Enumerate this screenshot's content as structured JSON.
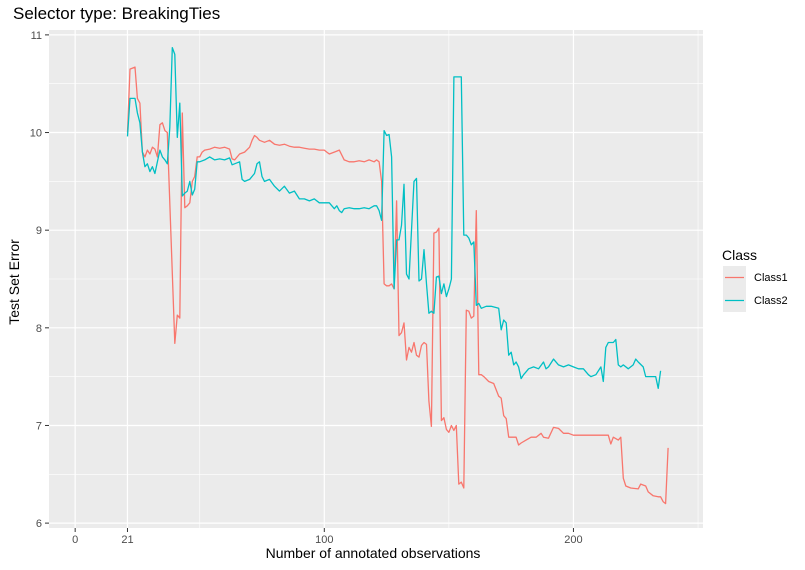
{
  "chart_data": {
    "type": "line",
    "title": "Selector type: BreakingTies",
    "xlabel": "Number of annotated observations",
    "ylabel": "Test Set Error",
    "xlim": [
      -10.5,
      252
    ],
    "ylim": [
      5.95,
      11.05
    ],
    "x_ticks": [
      0,
      21,
      100,
      200
    ],
    "y_ticks": [
      6,
      7,
      8,
      9,
      10,
      11
    ],
    "x_minor_ticks": [
      50,
      150,
      250
    ],
    "y_minor_ticks": [
      6.5,
      7.5,
      8.5,
      9.5,
      10.5
    ],
    "grid": true,
    "legend": {
      "title": "Class",
      "position": "right"
    },
    "series": [
      {
        "name": "Class1",
        "color": "#F8766D",
        "points": [
          [
            21,
            10.0
          ],
          [
            22,
            10.65
          ],
          [
            24,
            10.67
          ],
          [
            25,
            10.35
          ],
          [
            26,
            10.3
          ],
          [
            27,
            9.8
          ],
          [
            28,
            9.75
          ],
          [
            29,
            9.82
          ],
          [
            30,
            9.78
          ],
          [
            31,
            9.85
          ],
          [
            32,
            9.83
          ],
          [
            33,
            9.75
          ],
          [
            34,
            10.08
          ],
          [
            35,
            10.1
          ],
          [
            36,
            10.02
          ],
          [
            37,
            10.0
          ],
          [
            40,
            7.84
          ],
          [
            41,
            8.13
          ],
          [
            42,
            8.1
          ],
          [
            43,
            10.2
          ],
          [
            44,
            9.23
          ],
          [
            45,
            9.25
          ],
          [
            46,
            9.28
          ],
          [
            47,
            9.5
          ],
          [
            48,
            9.55
          ],
          [
            49,
            9.75
          ],
          [
            50,
            9.75
          ],
          [
            51,
            9.8
          ],
          [
            52,
            9.82
          ],
          [
            54,
            9.83
          ],
          [
            56,
            9.85
          ],
          [
            58,
            9.84
          ],
          [
            60,
            9.85
          ],
          [
            62,
            9.83
          ],
          [
            63,
            9.73
          ],
          [
            64,
            9.72
          ],
          [
            66,
            9.78
          ],
          [
            68,
            9.8
          ],
          [
            70,
            9.85
          ],
          [
            71,
            9.92
          ],
          [
            72,
            9.97
          ],
          [
            73,
            9.95
          ],
          [
            74,
            9.92
          ],
          [
            76,
            9.9
          ],
          [
            78,
            9.92
          ],
          [
            80,
            9.88
          ],
          [
            82,
            9.87
          ],
          [
            84,
            9.88
          ],
          [
            86,
            9.86
          ],
          [
            88,
            9.85
          ],
          [
            90,
            9.85
          ],
          [
            92,
            9.84
          ],
          [
            94,
            9.83
          ],
          [
            96,
            9.83
          ],
          [
            98,
            9.82
          ],
          [
            100,
            9.82
          ],
          [
            101,
            9.8
          ],
          [
            102,
            9.78
          ],
          [
            104,
            9.8
          ],
          [
            106,
            9.82
          ],
          [
            108,
            9.72
          ],
          [
            110,
            9.7
          ],
          [
            112,
            9.7
          ],
          [
            114,
            9.71
          ],
          [
            116,
            9.7
          ],
          [
            118,
            9.72
          ],
          [
            120,
            9.7
          ],
          [
            121,
            9.72
          ],
          [
            122,
            9.7
          ],
          [
            123,
            9.5
          ],
          [
            124,
            8.45
          ],
          [
            125,
            8.43
          ],
          [
            126,
            8.43
          ],
          [
            127,
            8.45
          ],
          [
            128,
            8.4
          ],
          [
            129,
            9.3
          ],
          [
            130,
            7.92
          ],
          [
            131,
            7.95
          ],
          [
            132,
            8.05
          ],
          [
            133,
            7.67
          ],
          [
            134,
            7.8
          ],
          [
            135,
            7.75
          ],
          [
            136,
            7.85
          ],
          [
            137,
            7.72
          ],
          [
            138,
            7.7
          ],
          [
            139,
            7.82
          ],
          [
            140,
            7.85
          ],
          [
            141,
            7.83
          ],
          [
            142,
            7.25
          ],
          [
            143,
            6.99
          ],
          [
            144,
            8.97
          ],
          [
            145,
            8.98
          ],
          [
            146,
            9.02
          ],
          [
            147,
            7.05
          ],
          [
            148,
            7.08
          ],
          [
            149,
            6.96
          ],
          [
            150,
            6.93
          ],
          [
            151,
            7.0
          ],
          [
            152,
            6.95
          ],
          [
            153,
            7.0
          ],
          [
            154,
            6.4
          ],
          [
            155,
            6.42
          ],
          [
            156,
            6.36
          ],
          [
            157,
            8.18
          ],
          [
            158,
            8.17
          ],
          [
            159,
            8.1
          ],
          [
            160,
            8.12
          ],
          [
            161,
            9.2
          ],
          [
            162,
            7.52
          ],
          [
            163,
            7.52
          ],
          [
            164,
            7.5
          ],
          [
            166,
            7.45
          ],
          [
            168,
            7.43
          ],
          [
            170,
            7.3
          ],
          [
            171,
            7.28
          ],
          [
            172,
            7.1
          ],
          [
            173,
            7.07
          ],
          [
            174,
            6.88
          ],
          [
            175,
            6.88
          ],
          [
            177,
            6.88
          ],
          [
            178,
            6.8
          ],
          [
            179,
            6.82
          ],
          [
            181,
            6.85
          ],
          [
            183,
            6.88
          ],
          [
            185,
            6.88
          ],
          [
            187,
            6.92
          ],
          [
            188,
            6.88
          ],
          [
            190,
            6.87
          ],
          [
            192,
            6.98
          ],
          [
            194,
            6.97
          ],
          [
            196,
            6.92
          ],
          [
            198,
            6.92
          ],
          [
            200,
            6.9
          ],
          [
            205,
            6.9
          ],
          [
            210,
            6.9
          ],
          [
            214,
            6.9
          ],
          [
            215,
            6.81
          ],
          [
            216,
            6.88
          ],
          [
            218,
            6.85
          ],
          [
            219,
            6.88
          ],
          [
            220,
            6.46
          ],
          [
            221,
            6.38
          ],
          [
            223,
            6.36
          ],
          [
            226,
            6.35
          ],
          [
            227,
            6.4
          ],
          [
            229,
            6.38
          ],
          [
            230,
            6.32
          ],
          [
            232,
            6.28
          ],
          [
            234,
            6.27
          ],
          [
            235,
            6.27
          ],
          [
            236,
            6.22
          ],
          [
            237,
            6.2
          ],
          [
            238,
            6.77
          ]
        ]
      },
      {
        "name": "Class2",
        "color": "#00BFC4",
        "points": [
          [
            21,
            9.96
          ],
          [
            22,
            10.35
          ],
          [
            24,
            10.35
          ],
          [
            25,
            10.2
          ],
          [
            26,
            10.1
          ],
          [
            27,
            9.8
          ],
          [
            28,
            9.65
          ],
          [
            29,
            9.68
          ],
          [
            30,
            9.6
          ],
          [
            31,
            9.65
          ],
          [
            32,
            9.58
          ],
          [
            33,
            9.7
          ],
          [
            34,
            9.82
          ],
          [
            35,
            9.75
          ],
          [
            36,
            9.72
          ],
          [
            37,
            9.68
          ],
          [
            38,
            10.05
          ],
          [
            39,
            10.87
          ],
          [
            40,
            10.8
          ],
          [
            41,
            9.95
          ],
          [
            42,
            10.3
          ],
          [
            43,
            9.35
          ],
          [
            44,
            9.38
          ],
          [
            45,
            9.4
          ],
          [
            46,
            9.5
          ],
          [
            47,
            9.36
          ],
          [
            48,
            9.42
          ],
          [
            49,
            9.7
          ],
          [
            50,
            9.7
          ],
          [
            52,
            9.72
          ],
          [
            54,
            9.75
          ],
          [
            56,
            9.72
          ],
          [
            58,
            9.73
          ],
          [
            60,
            9.72
          ],
          [
            62,
            9.74
          ],
          [
            63,
            9.67
          ],
          [
            64,
            9.68
          ],
          [
            66,
            9.7
          ],
          [
            67,
            9.52
          ],
          [
            68,
            9.5
          ],
          [
            70,
            9.52
          ],
          [
            72,
            9.58
          ],
          [
            73,
            9.68
          ],
          [
            74,
            9.7
          ],
          [
            75,
            9.55
          ],
          [
            76,
            9.5
          ],
          [
            78,
            9.52
          ],
          [
            80,
            9.45
          ],
          [
            82,
            9.4
          ],
          [
            84,
            9.45
          ],
          [
            86,
            9.38
          ],
          [
            88,
            9.4
          ],
          [
            90,
            9.32
          ],
          [
            92,
            9.32
          ],
          [
            94,
            9.3
          ],
          [
            96,
            9.32
          ],
          [
            98,
            9.28
          ],
          [
            100,
            9.28
          ],
          [
            102,
            9.28
          ],
          [
            104,
            9.22
          ],
          [
            105,
            9.25
          ],
          [
            106,
            9.2
          ],
          [
            107,
            9.18
          ],
          [
            108,
            9.22
          ],
          [
            110,
            9.23
          ],
          [
            112,
            9.22
          ],
          [
            114,
            9.22
          ],
          [
            116,
            9.23
          ],
          [
            118,
            9.22
          ],
          [
            120,
            9.25
          ],
          [
            121,
            9.25
          ],
          [
            122,
            9.2
          ],
          [
            123,
            9.1
          ],
          [
            124,
            10.02
          ],
          [
            125,
            9.97
          ],
          [
            126,
            9.98
          ],
          [
            127,
            9.75
          ],
          [
            128,
            8.4
          ],
          [
            129,
            8.9
          ],
          [
            130,
            8.9
          ],
          [
            131,
            9.05
          ],
          [
            132,
            9.47
          ],
          [
            133,
            8.55
          ],
          [
            134,
            8.5
          ],
          [
            135,
            9.0
          ],
          [
            136,
            9.5
          ],
          [
            137,
            9.53
          ],
          [
            138,
            8.48
          ],
          [
            139,
            8.5
          ],
          [
            140,
            8.8
          ],
          [
            141,
            8.45
          ],
          [
            142,
            8.15
          ],
          [
            143,
            8.17
          ],
          [
            144,
            8.15
          ],
          [
            145,
            8.52
          ],
          [
            146,
            8.53
          ],
          [
            147,
            8.35
          ],
          [
            148,
            8.45
          ],
          [
            149,
            8.32
          ],
          [
            150,
            8.4
          ],
          [
            151,
            8.5
          ],
          [
            152,
            10.57
          ],
          [
            153,
            10.57
          ],
          [
            155,
            10.57
          ],
          [
            156,
            8.95
          ],
          [
            157,
            8.95
          ],
          [
            158,
            8.92
          ],
          [
            159,
            8.85
          ],
          [
            160,
            8.88
          ],
          [
            161,
            8.23
          ],
          [
            162,
            8.25
          ],
          [
            163,
            8.2
          ],
          [
            165,
            8.22
          ],
          [
            167,
            8.22
          ],
          [
            170,
            8.2
          ],
          [
            171,
            7.98
          ],
          [
            172,
            8.08
          ],
          [
            173,
            8.05
          ],
          [
            174,
            7.72
          ],
          [
            175,
            7.75
          ],
          [
            176,
            7.62
          ],
          [
            177,
            7.65
          ],
          [
            178,
            7.6
          ],
          [
            179,
            7.48
          ],
          [
            180,
            7.52
          ],
          [
            181,
            7.55
          ],
          [
            182,
            7.58
          ],
          [
            184,
            7.6
          ],
          [
            186,
            7.58
          ],
          [
            188,
            7.65
          ],
          [
            189,
            7.58
          ],
          [
            190,
            7.6
          ],
          [
            192,
            7.68
          ],
          [
            194,
            7.62
          ],
          [
            196,
            7.6
          ],
          [
            198,
            7.62
          ],
          [
            200,
            7.6
          ],
          [
            202,
            7.58
          ],
          [
            204,
            7.58
          ],
          [
            206,
            7.52
          ],
          [
            207,
            7.5
          ],
          [
            209,
            7.52
          ],
          [
            211,
            7.6
          ],
          [
            212,
            7.45
          ],
          [
            213,
            7.8
          ],
          [
            214,
            7.85
          ],
          [
            216,
            7.85
          ],
          [
            217,
            7.88
          ],
          [
            218,
            7.62
          ],
          [
            219,
            7.6
          ],
          [
            220,
            7.62
          ],
          [
            222,
            7.58
          ],
          [
            224,
            7.62
          ],
          [
            225,
            7.68
          ],
          [
            226,
            7.65
          ],
          [
            228,
            7.6
          ],
          [
            229,
            7.5
          ],
          [
            230,
            7.5
          ],
          [
            232,
            7.5
          ],
          [
            233,
            7.5
          ],
          [
            234,
            7.38
          ],
          [
            235,
            7.56
          ]
        ]
      }
    ]
  }
}
